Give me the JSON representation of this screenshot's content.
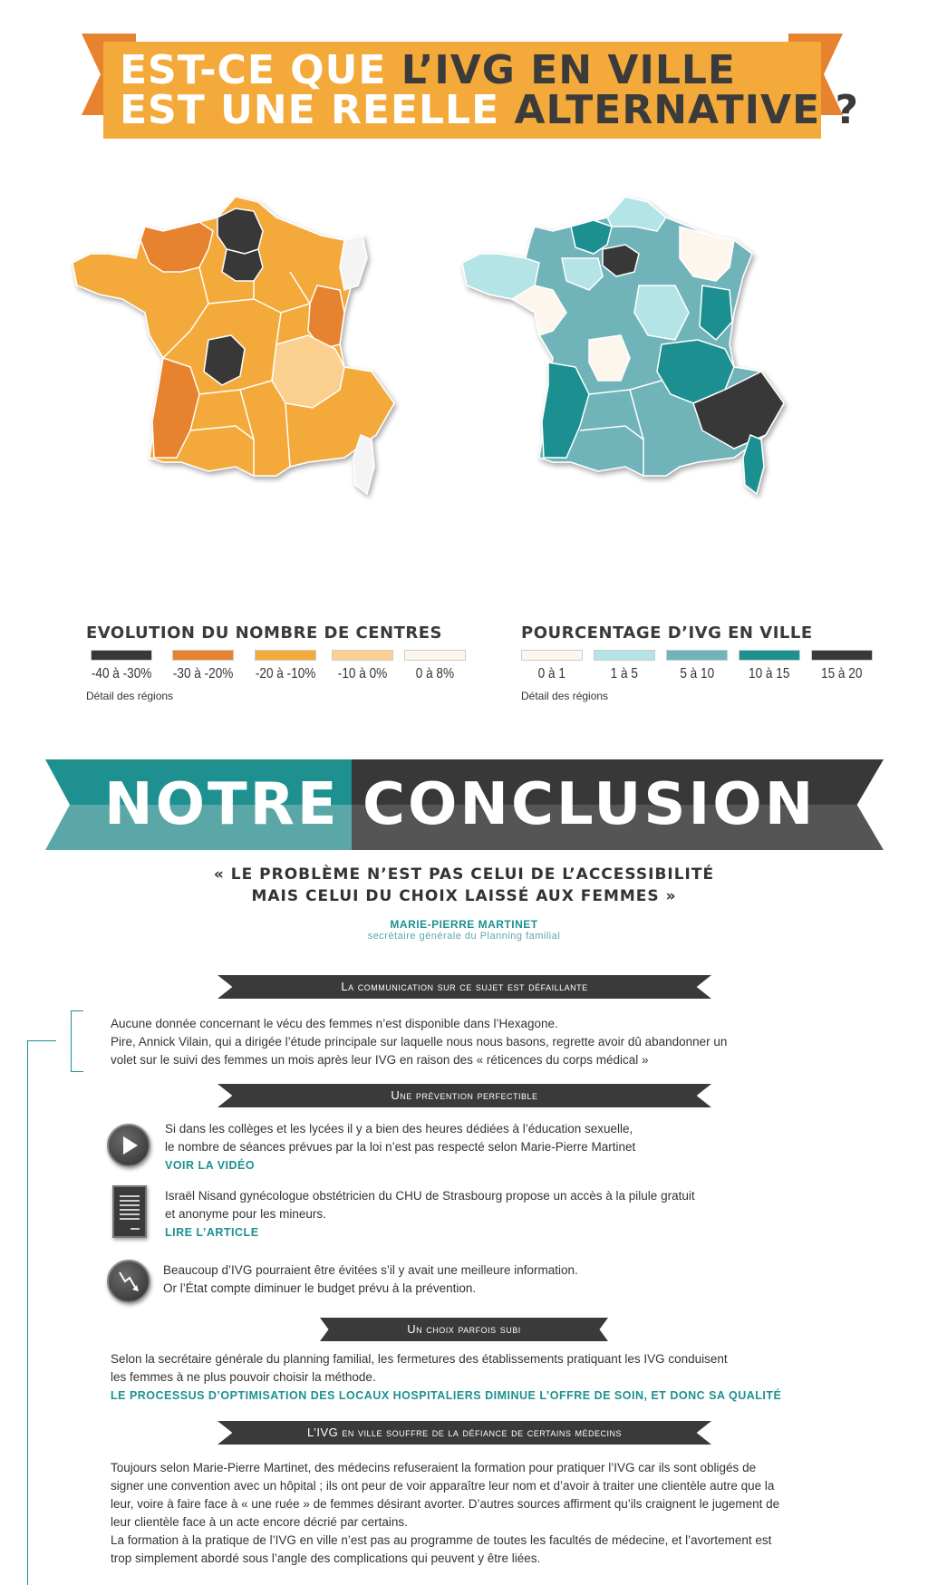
{
  "header": {
    "line1_a": "EST-CE QUE ",
    "line1_b": "L’IVG EN VILLE",
    "line2_a": "EST UNE REELLE ",
    "line2_b": "ALTERNATIVE ?"
  },
  "colors": {
    "orange_dark": "#e7822f",
    "orange": "#f4aa3b",
    "orange_light": "#fbd08f",
    "cream": "#fdf6ec",
    "teal_light": "#b4e4e6",
    "teal_mid": "#6fb4ba",
    "teal_dark": "#1e9090",
    "black": "#383838"
  },
  "legend_left": {
    "title": "EVOLUTION DU NOMBRE DE CENTRES",
    "items": [
      {
        "label": "-40 à -30%",
        "color": "#383838"
      },
      {
        "label": "-30 à -20%",
        "color": "#e7822f"
      },
      {
        "label": "-20 à -10%",
        "color": "#f4aa3b"
      },
      {
        "label": "-10  à  0%",
        "color": "#fbd08f"
      },
      {
        "label": "0 à 8%",
        "color": "#fdf6ec"
      }
    ],
    "link": "Détail des régions"
  },
  "legend_right": {
    "title": "POURCENTAGE D’IVG EN VILLE",
    "items": [
      {
        "label": "0 à 1",
        "color": "#fdf6ec"
      },
      {
        "label": "1 à 5",
        "color": "#b4e4e6"
      },
      {
        "label": "5 à 10",
        "color": "#6fb4ba"
      },
      {
        "label": "10 à 15",
        "color": "#1e9090"
      },
      {
        "label": "15 à 20",
        "color": "#383838"
      }
    ],
    "link": "Détail des régions"
  },
  "conclusion": {
    "word1": "NOTRE",
    "word2": "CONCLUSION",
    "quote_line1": "« LE PROBLÈME N’EST PAS CELUI DE L’ACCESSIBILITÉ",
    "quote_line2": "MAIS CELUI DU CHOIX LAISSÉ AUX FEMMES »",
    "author": "MARIE-PIERRE MARTINET",
    "author_role": "secrétaire générale du Planning familial"
  },
  "sections": {
    "s1_title": "La communication sur ce sujet est défaillante",
    "s1_line1": "Aucune donnée concernant le vécu des femmes n’est disponible dans l’Hexagone.",
    "s1_line2": "Pire, Annick Vilain, qui a dirigée l’étude principale sur laquelle nous nous basons, regrette avoir dû abandonner un",
    "s1_line3": "volet sur le suivi des femmes un mois après leur IVG en raison des « réticences du corps médical »",
    "s2_title": "Une prévention perfectible",
    "s2_item1_line1": "Si dans les collèges et les lycées il y a bien des heures dédiées à l’éducation sexuelle,",
    "s2_item1_line2": "le nombre de séances prévues par la loi n’est pas respecté selon Marie-Pierre Martinet",
    "s2_item1_link": "VOIR LA VIDÉO",
    "s2_item2_line1": "Israël Nisand gynécologue obstétricien du CHU de Strasbourg propose un accès à la pilule gratuit",
    "s2_item2_line2": "et anonyme pour les mineurs.",
    "s2_item2_link": "LIRE L’ARTICLE",
    "s2_item3_line1": "Beaucoup d’IVG pourraient être évitées s’il y avait une meilleure information.",
    "s2_item3_line2": "Or l’État compte diminuer le budget prévu à la prévention.",
    "s3_title": "Un choix parfois subi",
    "s3_line1": "Selon la secrétaire générale du planning familial, les fermetures des établissements pratiquant les IVG conduisent",
    "s3_line2": "les femmes à ne plus pouvoir choisir la méthode.",
    "s3_link": "LE PROCESSUS D’OPTIMISATION DES LOCAUX HOSPITALIERS DIMINUE L’OFFRE DE SOIN, ET DONC SA QUALITÉ",
    "s4_title": "L’IVG en ville souffre de la défiance de certains médecins",
    "s4_line1": "Toujours selon Marie-Pierre Martinet, des médecins refuseraient la formation pour pratiquer l’IVG car ils sont obligés de",
    "s4_line2": "signer une convention avec un hôpital ; ils ont peur de voir apparaître leur nom et d’avoir à traiter une clientèle autre que la",
    "s4_line3": "leur, voire à faire face à « une ruée » de femmes désirant avorter. D’autres sources affirment qu’ils craignent le jugement de",
    "s4_line4": "leur clientèle face à un acte encore décrié par certains.",
    "s4_line5": "La formation à la pratique de l’IVG en ville n’est pas au programme de toutes les facultés de médecine, et l’avortement est",
    "s4_line6": "trop simplement abordé sous l’angle des complications qui peuvent y être liées."
  },
  "icons": {
    "video": "play-icon",
    "article": "document-icon",
    "decline": "trend-down-icon"
  }
}
